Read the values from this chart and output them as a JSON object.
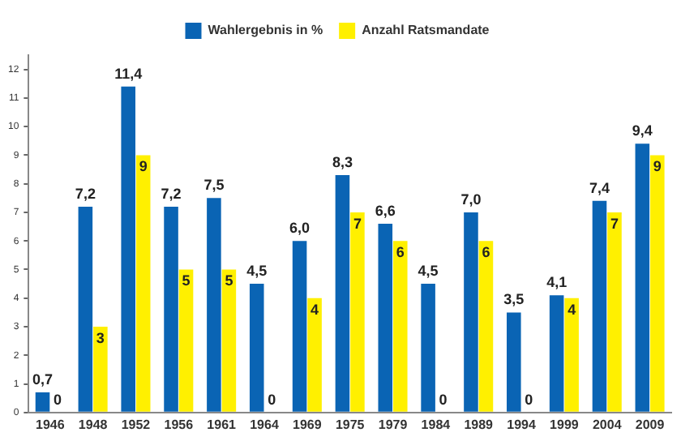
{
  "chart_data": {
    "type": "bar",
    "categories": [
      "1946",
      "1948",
      "1952",
      "1956",
      "1961",
      "1964",
      "1969",
      "1975",
      "1979",
      "1984",
      "1989",
      "1994",
      "1999",
      "2004",
      "2009"
    ],
    "series": [
      {
        "name": "Wahlergebnis in %",
        "color": "#0a64b4",
        "values": [
          0.7,
          7.2,
          11.4,
          7.2,
          7.5,
          4.5,
          6.0,
          8.3,
          6.6,
          4.5,
          7.0,
          3.5,
          4.1,
          7.4,
          9.4
        ],
        "value_labels": [
          "0,7",
          "7,2",
          "11,4",
          "7,2",
          "7,5",
          "4,5",
          "6,0",
          "8,3",
          "6,6",
          "4,5",
          "7,0",
          "3,5",
          "4,1",
          "7,4",
          "9,4"
        ]
      },
      {
        "name": "Anzahl Ratsmandate",
        "color": "#fff000",
        "values": [
          0,
          3,
          9,
          5,
          5,
          0,
          4,
          7,
          6,
          0,
          6,
          0,
          4,
          7,
          9
        ],
        "value_labels": [
          "0",
          "3",
          "9",
          "5",
          "5",
          "0",
          "4",
          "7",
          "6",
          "0",
          "6",
          "0",
          "4",
          "7",
          "9"
        ]
      }
    ],
    "ylim": [
      0,
      12.5
    ],
    "yticks": [
      0,
      1,
      2,
      3,
      4,
      5,
      6,
      7,
      8,
      9,
      10,
      11,
      12
    ],
    "grid": false,
    "legend": "top"
  }
}
